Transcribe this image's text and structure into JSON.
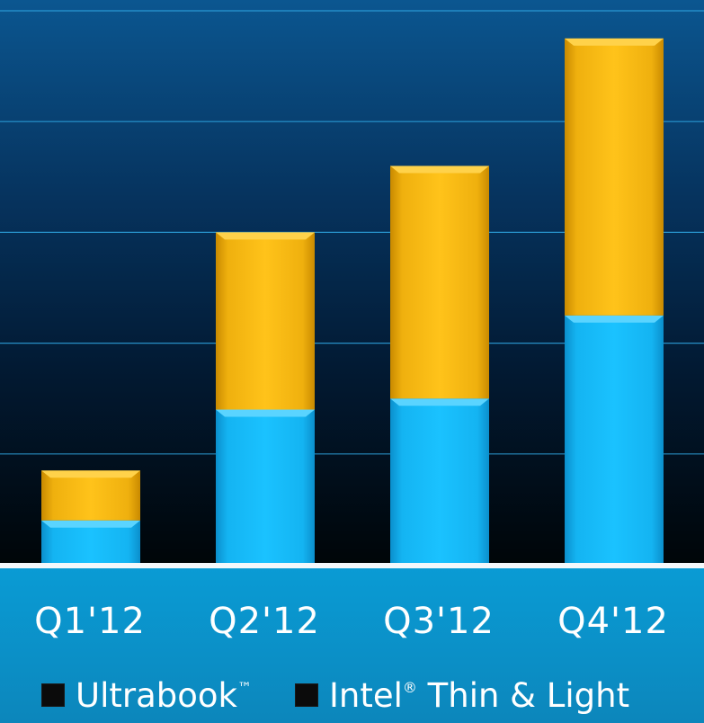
{
  "chart_data": {
    "type": "bar",
    "stacked": true,
    "categories": [
      "Q1'12",
      "Q2'12",
      "Q3'12",
      "Q4'12"
    ],
    "series": [
      {
        "name": "Ultrabook™",
        "values": [
          0.8,
          2.8,
          3.0,
          4.5
        ],
        "color": "#12b6f4"
      },
      {
        "name": "Intel® Thin & Light",
        "values": [
          0.9,
          3.2,
          4.2,
          5.0
        ],
        "color": "#f4b610"
      }
    ],
    "ylim": [
      0,
      10
    ],
    "y_gridlines": [
      2,
      4,
      6,
      8,
      10
    ],
    "ytick_labels_shown": false,
    "grid": true,
    "legend_position": "bottom",
    "colors": {
      "background_top": "#0b5690",
      "background_bottom": "#000508",
      "band": "#0a9bd4",
      "gridline": "#2fa4e0"
    }
  },
  "legend": {
    "ultrabook": {
      "name": "Ultrabook",
      "mark": "™"
    },
    "thin_light": {
      "name": "Intel",
      "mark": "®",
      "rest": " Thin & Light"
    }
  }
}
